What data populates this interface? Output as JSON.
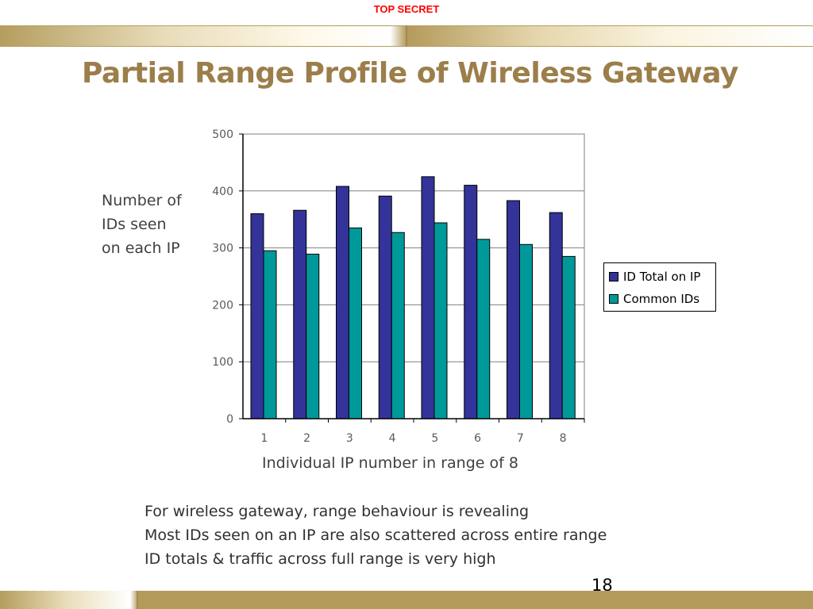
{
  "header": {
    "classification": "TOP SECRET"
  },
  "slide": {
    "title": "Partial Range Profile of Wireless Gateway",
    "y_axis_label_lines": [
      "Number of",
      "IDs seen",
      "on each IP"
    ],
    "bullets": [
      "For wireless gateway, range behaviour is revealing",
      "Most IDs seen on an IP are also scattered across entire range",
      "ID totals & traffic across full range is very high"
    ],
    "page_number": "18"
  },
  "colors": {
    "series1": "#333399",
    "series2": "#009999",
    "title": "#9c7e4a",
    "classification": "#ff0000",
    "band": "#b59d5f"
  },
  "chart_data": {
    "type": "bar",
    "title": "",
    "xlabel": "Individual IP number in range of 8",
    "ylabel": "Number of IDs seen on each IP",
    "categories": [
      "1",
      "2",
      "3",
      "4",
      "5",
      "6",
      "7",
      "8"
    ],
    "series": [
      {
        "name": "ID Total on IP",
        "values": [
          360,
          366,
          408,
          391,
          425,
          410,
          383,
          362
        ]
      },
      {
        "name": "Common IDs",
        "values": [
          295,
          289,
          335,
          327,
          344,
          315,
          306,
          285
        ]
      }
    ],
    "ylim": [
      0,
      500
    ],
    "yticks": [
      "0",
      "100",
      "200",
      "300",
      "400",
      "500"
    ],
    "grid": true,
    "legend": "right"
  }
}
